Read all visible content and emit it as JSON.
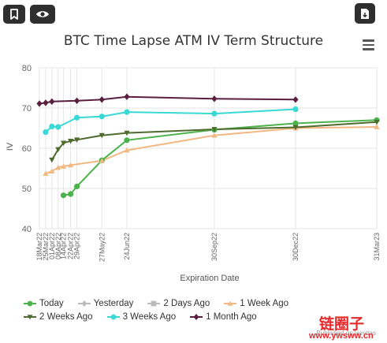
{
  "toolbar": {
    "bookmark_icon": "bookmark-icon",
    "eye_icon": "eye-icon",
    "download_icon": "download-icon"
  },
  "menu_icon": "hamburger-menu-icon",
  "credit": "Published on laevitas",
  "stamp": {
    "text": "链圈子",
    "url": "www.ywsww.cn"
  },
  "chart_data": {
    "type": "line",
    "title": "BTC Time Lapse ATM IV Term Structure",
    "xlabel": "Expiration Date",
    "ylabel": "IV",
    "ylim": [
      40,
      80
    ],
    "yticks": [
      40,
      50,
      60,
      70,
      80
    ],
    "xaxis_dates": [
      "2022-03-18",
      "2022-03-25",
      "2022-04-01",
      "2022-04-08",
      "2022-04-14",
      "2022-04-22",
      "2022-04-29",
      "2022-05-27",
      "2022-06-24",
      "2022-09-30",
      "2022-12-30",
      "2023-03-31"
    ],
    "xticks": [
      {
        "date": "2022-03-18",
        "label": "18Mar22"
      },
      {
        "date": "2022-03-25",
        "label": "25Mar22"
      },
      {
        "date": "2022-04-01",
        "label": "01Apr22"
      },
      {
        "date": "2022-04-08",
        "label": "08Apr22"
      },
      {
        "date": "2022-04-14",
        "label": "14Apr22"
      },
      {
        "date": "2022-04-22",
        "label": "22Apr22"
      },
      {
        "date": "2022-04-29",
        "label": "29Apr22"
      },
      {
        "date": "2022-05-27",
        "label": "27May22"
      },
      {
        "date": "2022-06-24",
        "label": "24Jun22"
      },
      {
        "date": "2022-09-30",
        "label": "30Sep22"
      },
      {
        "date": "2022-12-30",
        "label": "30Dec22"
      },
      {
        "date": "2023-03-31",
        "label": "31Mar23"
      }
    ],
    "series": [
      {
        "name": "Today",
        "color": "#4cb34c",
        "marker": "circle",
        "points": [
          [
            "2022-04-14",
            48.3
          ],
          [
            "2022-04-22",
            48.6
          ],
          [
            "2022-04-29",
            50.5
          ],
          [
            "2022-05-27",
            57.0
          ],
          [
            "2022-06-24",
            62.0
          ],
          [
            "2022-09-30",
            64.6
          ],
          [
            "2022-12-30",
            66.2
          ],
          [
            "2023-03-31",
            67.0
          ]
        ]
      },
      {
        "name": "Yesterday",
        "color": "#bbbbbb",
        "marker": "diamond",
        "points": []
      },
      {
        "name": "2 Days Ago",
        "color": "#bbbbbb",
        "marker": "square",
        "points": []
      },
      {
        "name": "1 Week Ago",
        "color": "#f2b882",
        "marker": "triangle",
        "points": [
          [
            "2022-03-25",
            53.7
          ],
          [
            "2022-04-01",
            54.3
          ],
          [
            "2022-04-08",
            55.2
          ],
          [
            "2022-04-14",
            55.5
          ],
          [
            "2022-04-22",
            55.8
          ],
          [
            "2022-05-27",
            56.9
          ],
          [
            "2022-06-24",
            59.5
          ],
          [
            "2022-09-30",
            63.2
          ],
          [
            "2022-12-30",
            65.0
          ],
          [
            "2023-03-31",
            65.3
          ]
        ]
      },
      {
        "name": "2 Weeks Ago",
        "color": "#4e6b2e",
        "marker": "triangle-down",
        "points": [
          [
            "2022-04-01",
            57.1
          ],
          [
            "2022-04-08",
            59.7
          ],
          [
            "2022-04-14",
            61.3
          ],
          [
            "2022-04-22",
            61.8
          ],
          [
            "2022-04-29",
            62.1
          ],
          [
            "2022-05-27",
            63.2
          ],
          [
            "2022-06-24",
            63.8
          ],
          [
            "2022-09-30",
            64.7
          ],
          [
            "2022-12-30",
            65.2
          ],
          [
            "2023-03-31",
            66.5
          ]
        ]
      },
      {
        "name": "3 Weeks Ago",
        "color": "#38d9d6",
        "marker": "circle",
        "points": [
          [
            "2022-03-25",
            64.0
          ],
          [
            "2022-04-01",
            65.4
          ],
          [
            "2022-04-08",
            65.3
          ],
          [
            "2022-04-29",
            67.6
          ],
          [
            "2022-05-27",
            67.9
          ],
          [
            "2022-06-24",
            69.0
          ],
          [
            "2022-09-30",
            68.6
          ],
          [
            "2022-12-30",
            69.7
          ]
        ]
      },
      {
        "name": "1 Month Ago",
        "color": "#5a1f3f",
        "marker": "diamond",
        "points": [
          [
            "2022-03-18",
            71.1
          ],
          [
            "2022-03-25",
            71.3
          ],
          [
            "2022-04-01",
            71.6
          ],
          [
            "2022-04-29",
            71.8
          ],
          [
            "2022-05-27",
            72.1
          ],
          [
            "2022-06-24",
            72.8
          ],
          [
            "2022-09-30",
            72.3
          ],
          [
            "2022-12-30",
            72.1
          ]
        ]
      }
    ],
    "legend": [
      [
        {
          "name": "Today",
          "color": "#4cb34c",
          "marker": "circle"
        },
        {
          "name": "Yesterday",
          "color": "#bbbbbb",
          "marker": "diamond"
        },
        {
          "name": "2 Days Ago",
          "color": "#bbbbbb",
          "marker": "square"
        },
        {
          "name": "1 Week Ago",
          "color": "#f2b882",
          "marker": "triangle"
        }
      ],
      [
        {
          "name": "2 Weeks Ago",
          "color": "#4e6b2e",
          "marker": "triangle-down"
        },
        {
          "name": "3 Weeks Ago",
          "color": "#38d9d6",
          "marker": "circle"
        },
        {
          "name": "1 Month Ago",
          "color": "#5a1f3f",
          "marker": "diamond"
        }
      ]
    ],
    "grid": {
      "horizontal": true,
      "vertical": true
    },
    "legend_position": "bottom"
  }
}
